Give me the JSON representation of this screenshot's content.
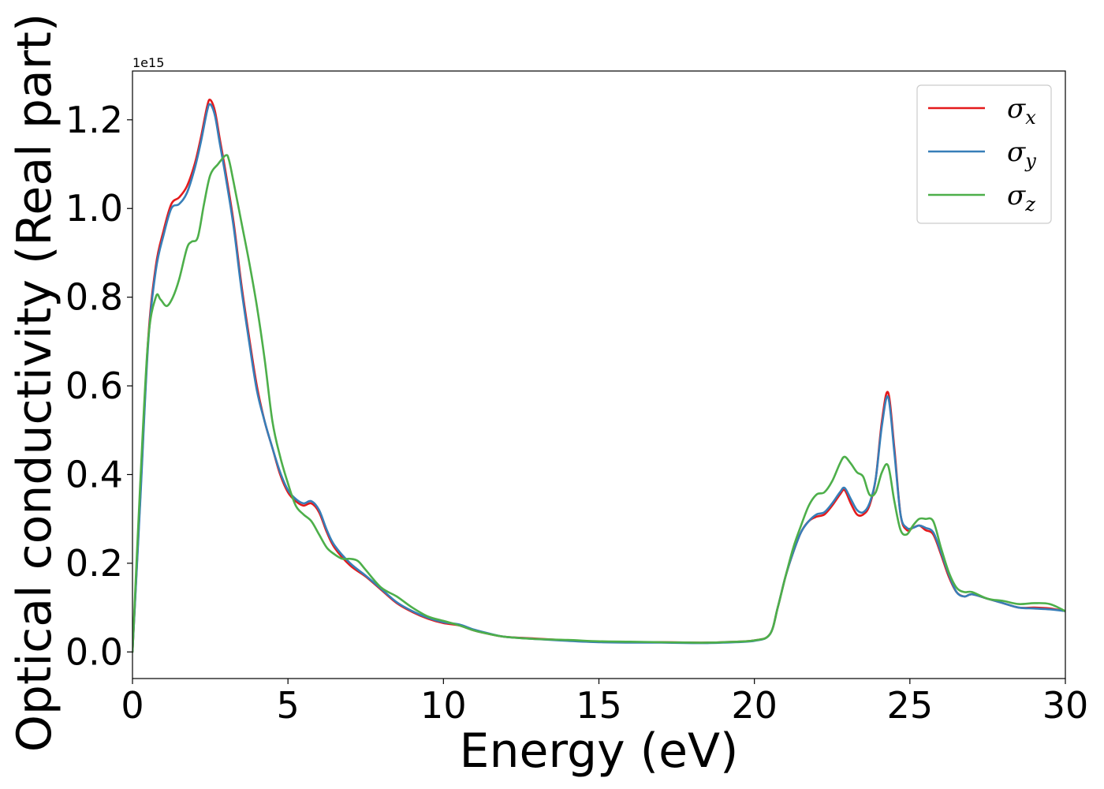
{
  "chart_data": {
    "type": "line",
    "xlabel": "Energy (eV)",
    "ylabel": "Optical conductivity (Real part)",
    "y_offset_label": "1e15",
    "xlim": [
      0,
      30
    ],
    "ylim": [
      -0.06,
      1.31
    ],
    "x_ticks": [
      0,
      5,
      10,
      15,
      20,
      25,
      30
    ],
    "x_tick_labels": [
      "0",
      "5",
      "10",
      "15",
      "20",
      "25",
      "30"
    ],
    "y_ticks": [
      0.0,
      0.2,
      0.4,
      0.6,
      0.8,
      1.0,
      1.2
    ],
    "y_tick_labels": [
      "0.0",
      "0.2",
      "0.4",
      "0.6",
      "0.8",
      "1.0",
      "1.2"
    ],
    "grid": false,
    "legend_position": "top-right",
    "series": [
      {
        "name": "σx",
        "name_base": "σ",
        "name_sub": "x",
        "color": "#e41a1c",
        "x": [
          0,
          0.25,
          0.5,
          0.75,
          1.0,
          1.25,
          1.5,
          1.75,
          2.0,
          2.2,
          2.4,
          2.5,
          2.65,
          2.8,
          3.0,
          3.25,
          3.5,
          3.75,
          4.0,
          4.25,
          4.5,
          4.75,
          5.0,
          5.25,
          5.5,
          5.75,
          6.0,
          6.25,
          6.5,
          7.0,
          7.5,
          8.0,
          8.5,
          9.0,
          9.5,
          10.0,
          10.5,
          11.0,
          11.5,
          12.0,
          13.0,
          14.0,
          15.0,
          16.0,
          17.0,
          18.0,
          18.5,
          19.0,
          20.0,
          20.5,
          20.75,
          21.0,
          21.25,
          21.5,
          21.75,
          22.0,
          22.25,
          22.5,
          22.75,
          22.9,
          23.1,
          23.3,
          23.5,
          23.7,
          23.9,
          24.1,
          24.3,
          24.5,
          24.7,
          24.9,
          25.1,
          25.3,
          25.5,
          25.75,
          26.0,
          26.25,
          26.5,
          26.75,
          27.0,
          27.5,
          28.0,
          28.5,
          29.0,
          29.5,
          30.0
        ],
        "values": [
          0.0,
          0.35,
          0.7,
          0.87,
          0.95,
          1.01,
          1.025,
          1.05,
          1.1,
          1.16,
          1.23,
          1.245,
          1.22,
          1.16,
          1.08,
          0.97,
          0.83,
          0.71,
          0.6,
          0.52,
          0.46,
          0.4,
          0.36,
          0.34,
          0.33,
          0.335,
          0.315,
          0.27,
          0.235,
          0.195,
          0.17,
          0.14,
          0.11,
          0.09,
          0.075,
          0.065,
          0.06,
          0.048,
          0.04,
          0.034,
          0.03,
          0.026,
          0.023,
          0.022,
          0.022,
          0.021,
          0.021,
          0.022,
          0.026,
          0.04,
          0.1,
          0.17,
          0.225,
          0.27,
          0.295,
          0.305,
          0.31,
          0.33,
          0.355,
          0.365,
          0.335,
          0.31,
          0.31,
          0.33,
          0.39,
          0.52,
          0.585,
          0.46,
          0.31,
          0.275,
          0.28,
          0.285,
          0.275,
          0.265,
          0.22,
          0.17,
          0.135,
          0.125,
          0.13,
          0.12,
          0.11,
          0.1,
          0.1,
          0.098,
          0.092
        ]
      },
      {
        "name": "σy",
        "name_base": "σ",
        "name_sub": "y",
        "color": "#377eb8",
        "x": [
          0,
          0.25,
          0.5,
          0.75,
          1.0,
          1.25,
          1.5,
          1.75,
          2.0,
          2.2,
          2.4,
          2.5,
          2.65,
          2.8,
          3.0,
          3.25,
          3.5,
          3.75,
          4.0,
          4.25,
          4.5,
          4.75,
          5.0,
          5.25,
          5.5,
          5.75,
          6.0,
          6.25,
          6.5,
          7.0,
          7.5,
          8.0,
          8.5,
          9.0,
          9.5,
          10.0,
          10.5,
          11.0,
          11.5,
          12.0,
          13.0,
          14.0,
          15.0,
          16.0,
          17.0,
          18.0,
          18.5,
          19.0,
          20.0,
          20.5,
          20.75,
          21.0,
          21.25,
          21.5,
          21.75,
          22.0,
          22.25,
          22.5,
          22.75,
          22.9,
          23.1,
          23.3,
          23.5,
          23.7,
          23.9,
          24.1,
          24.3,
          24.5,
          24.7,
          24.9,
          25.1,
          25.3,
          25.5,
          25.75,
          26.0,
          26.25,
          26.5,
          26.75,
          27.0,
          27.5,
          28.0,
          28.5,
          29.0,
          29.5,
          30.0
        ],
        "values": [
          0.0,
          0.34,
          0.69,
          0.86,
          0.94,
          1.0,
          1.01,
          1.035,
          1.09,
          1.15,
          1.22,
          1.235,
          1.21,
          1.15,
          1.07,
          0.96,
          0.82,
          0.7,
          0.59,
          0.52,
          0.46,
          0.405,
          0.365,
          0.345,
          0.335,
          0.34,
          0.32,
          0.275,
          0.24,
          0.2,
          0.172,
          0.142,
          0.112,
          0.092,
          0.077,
          0.067,
          0.062,
          0.05,
          0.041,
          0.034,
          0.029,
          0.025,
          0.022,
          0.021,
          0.021,
          0.02,
          0.02,
          0.021,
          0.025,
          0.04,
          0.1,
          0.17,
          0.225,
          0.27,
          0.295,
          0.31,
          0.315,
          0.335,
          0.36,
          0.37,
          0.345,
          0.32,
          0.315,
          0.335,
          0.39,
          0.51,
          0.575,
          0.45,
          0.31,
          0.28,
          0.28,
          0.285,
          0.28,
          0.27,
          0.225,
          0.175,
          0.135,
          0.125,
          0.13,
          0.12,
          0.11,
          0.1,
          0.098,
          0.096,
          0.092
        ]
      },
      {
        "name": "σz",
        "name_base": "σ",
        "name_sub": "z",
        "color": "#4daf4a",
        "x": [
          0,
          0.25,
          0.5,
          0.75,
          0.9,
          1.1,
          1.3,
          1.5,
          1.75,
          1.9,
          2.1,
          2.3,
          2.5,
          2.75,
          3.0,
          3.1,
          3.25,
          3.5,
          3.75,
          4.0,
          4.25,
          4.5,
          4.75,
          5.0,
          5.25,
          5.5,
          5.75,
          6.0,
          6.25,
          6.5,
          6.75,
          7.0,
          7.25,
          7.5,
          8.0,
          8.5,
          9.0,
          9.5,
          10.0,
          10.5,
          11.0,
          11.5,
          12.0,
          13.0,
          14.0,
          15.0,
          16.0,
          17.0,
          18.0,
          18.5,
          19.0,
          20.0,
          20.5,
          20.75,
          21.0,
          21.25,
          21.5,
          21.75,
          22.0,
          22.25,
          22.5,
          22.75,
          22.9,
          23.1,
          23.3,
          23.5,
          23.7,
          23.9,
          24.1,
          24.3,
          24.5,
          24.7,
          24.9,
          25.1,
          25.3,
          25.5,
          25.75,
          26.0,
          26.25,
          26.5,
          26.75,
          27.0,
          27.5,
          28.0,
          28.5,
          29.0,
          29.5,
          30.0
        ],
        "values": [
          0.0,
          0.38,
          0.7,
          0.8,
          0.795,
          0.78,
          0.8,
          0.84,
          0.91,
          0.925,
          0.935,
          1.01,
          1.075,
          1.1,
          1.12,
          1.11,
          1.06,
          0.97,
          0.88,
          0.78,
          0.66,
          0.52,
          0.44,
          0.38,
          0.33,
          0.31,
          0.295,
          0.265,
          0.235,
          0.22,
          0.21,
          0.21,
          0.205,
          0.185,
          0.145,
          0.125,
          0.1,
          0.08,
          0.07,
          0.06,
          0.048,
          0.04,
          0.034,
          0.029,
          0.027,
          0.024,
          0.023,
          0.022,
          0.021,
          0.021,
          0.022,
          0.026,
          0.04,
          0.1,
          0.17,
          0.235,
          0.285,
          0.33,
          0.355,
          0.36,
          0.385,
          0.425,
          0.44,
          0.425,
          0.405,
          0.395,
          0.355,
          0.36,
          0.405,
          0.42,
          0.34,
          0.275,
          0.265,
          0.285,
          0.3,
          0.3,
          0.295,
          0.235,
          0.18,
          0.145,
          0.135,
          0.135,
          0.12,
          0.115,
          0.108,
          0.11,
          0.108,
          0.092
        ]
      }
    ]
  }
}
